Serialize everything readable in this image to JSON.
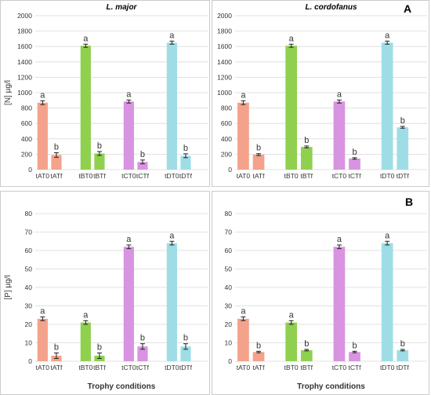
{
  "panel_labels": [
    "A",
    "B"
  ],
  "xlabel_bottom": "Trophy conditions",
  "colors": {
    "tA": "#f4a28c",
    "tB": "#8fd14f",
    "tC": "#d894e0",
    "tD": "#9fdde6"
  },
  "chart_data": [
    {
      "type": "bar",
      "title": "L. major",
      "ylabel": "[N] µg/l",
      "ylim": [
        0,
        2000
      ],
      "grid": true,
      "categories": [
        "tAT0",
        "tATf",
        "tBT0",
        "tBTf",
        "tCT0",
        "tCTf",
        "tDT0",
        "tDTf"
      ],
      "values": [
        870,
        190,
        1610,
        210,
        885,
        100,
        1650,
        180
      ],
      "errors": [
        25,
        30,
        20,
        25,
        20,
        25,
        20,
        25
      ],
      "letters": [
        "a",
        "b",
        "a",
        "b",
        "a",
        "b",
        "a",
        "b"
      ],
      "xlabel": ""
    },
    {
      "type": "bar",
      "title": "L. cordofanus",
      "ylabel": "",
      "ylim": [
        0,
        2000
      ],
      "grid": true,
      "categories": [
        "tAT0",
        "tATf",
        "tBT0",
        "tBTf",
        "tCT0",
        "tCTf",
        "tDT0",
        "tDTf"
      ],
      "values": [
        870,
        195,
        1610,
        295,
        885,
        145,
        1650,
        550
      ],
      "errors": [
        25,
        12,
        20,
        12,
        20,
        10,
        20,
        12
      ],
      "letters": [
        "a",
        "b",
        "a",
        "b",
        "a",
        "b",
        "a",
        "b"
      ],
      "xlabel": ""
    },
    {
      "type": "bar",
      "title": "",
      "ylabel": "[P] µg/l",
      "ylim": [
        0,
        80
      ],
      "grid": true,
      "categories": [
        "tAT0",
        "tATf",
        "tBT0",
        "tBTf",
        "tCT0",
        "tCTf",
        "tDT0",
        "tDTf"
      ],
      "values": [
        23,
        3,
        21,
        3,
        62,
        8,
        64,
        8
      ],
      "errors": [
        1,
        1.5,
        1,
        1.5,
        1,
        1.5,
        1,
        1.5
      ],
      "letters": [
        "a",
        "b",
        "a",
        "b",
        "a",
        "b",
        "a",
        "b"
      ],
      "xlabel": "Trophy conditions"
    },
    {
      "type": "bar",
      "title": "",
      "ylabel": "",
      "ylim": [
        0,
        80
      ],
      "grid": true,
      "categories": [
        "tAT0",
        "tATf",
        "tBT0",
        "tBTf",
        "tCT0",
        "tCTf",
        "tDT0",
        "tDTf"
      ],
      "values": [
        23,
        5,
        21,
        6,
        62,
        5,
        64,
        6
      ],
      "errors": [
        1,
        0.4,
        1,
        0.4,
        1,
        0.4,
        1,
        0.4
      ],
      "letters": [
        "a",
        "b",
        "a",
        "b",
        "a",
        "b",
        "a",
        "b"
      ],
      "xlabel": "Trophy conditions"
    }
  ]
}
